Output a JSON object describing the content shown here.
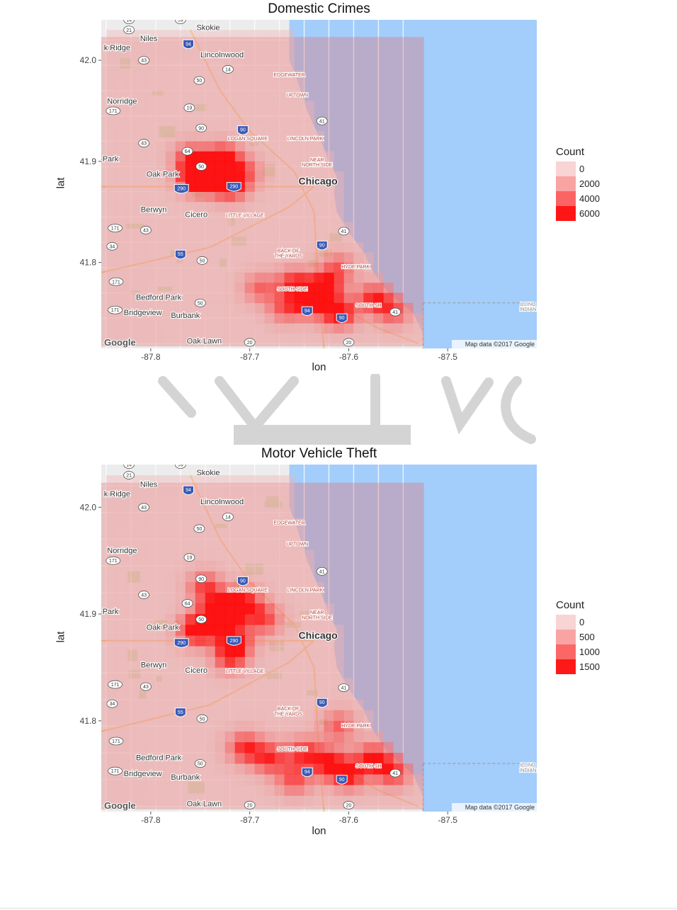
{
  "chart_data": [
    {
      "type": "heatmap",
      "title": "Domestic Crimes",
      "xlabel": "lon",
      "ylabel": "lat",
      "xlim": [
        -87.85,
        -87.41
      ],
      "ylim": [
        41.715,
        42.04
      ],
      "x_ticks": [
        -87.8,
        -87.7,
        -87.6,
        -87.5
      ],
      "x_tick_labels": [
        "-87.8",
        "-87.7",
        "-87.6",
        "-87.5"
      ],
      "y_ticks": [
        41.8,
        41.9,
        42.0
      ],
      "y_tick_labels": [
        "41.8",
        "41.9",
        "42.0"
      ],
      "legend": {
        "title": "Count",
        "placement": "right",
        "entries": [
          {
            "label": "0",
            "value": 0
          },
          {
            "label": "2000",
            "value": 2000
          },
          {
            "label": "4000",
            "value": 4000
          },
          {
            "label": "6000",
            "value": 6000
          }
        ],
        "max": 6500
      },
      "grid_cell": {
        "lon": 0.01,
        "lat": 0.01
      },
      "hotspots": [
        {
          "lon": -87.755,
          "lat": 41.885,
          "value": 6500
        },
        {
          "lon": -87.745,
          "lat": 41.885,
          "value": 6300
        },
        {
          "lon": -87.72,
          "lat": 41.875,
          "value": 5600
        },
        {
          "lon": -87.735,
          "lat": 41.895,
          "value": 4700
        },
        {
          "lon": -87.725,
          "lat": 41.905,
          "value": 4300
        },
        {
          "lon": -87.76,
          "lat": 41.905,
          "value": 4100
        },
        {
          "lon": -87.705,
          "lat": 41.89,
          "value": 3500
        },
        {
          "lon": -87.625,
          "lat": 41.775,
          "value": 6500
        },
        {
          "lon": -87.61,
          "lat": 41.75,
          "value": 6500
        },
        {
          "lon": -87.655,
          "lat": 41.78,
          "value": 5000
        },
        {
          "lon": -87.64,
          "lat": 41.76,
          "value": 5000
        },
        {
          "lon": -87.575,
          "lat": 41.765,
          "value": 5100
        },
        {
          "lon": -87.555,
          "lat": 41.752,
          "value": 4200
        },
        {
          "lon": -87.61,
          "lat": 41.795,
          "value": 3800
        },
        {
          "lon": -87.665,
          "lat": 41.755,
          "value": 3800
        },
        {
          "lon": -87.69,
          "lat": 41.775,
          "value": 3600
        }
      ]
    },
    {
      "type": "heatmap",
      "title": "Motor Vehicle Theft",
      "xlabel": "lon",
      "ylabel": "lat",
      "xlim": [
        -87.85,
        -87.41
      ],
      "ylim": [
        41.715,
        42.04
      ],
      "x_ticks": [
        -87.8,
        -87.7,
        -87.6,
        -87.5
      ],
      "x_tick_labels": [
        "-87.8",
        "-87.7",
        "-87.6",
        "-87.5"
      ],
      "y_ticks": [
        41.8,
        41.9,
        42.0
      ],
      "y_tick_labels": [
        "41.8",
        "41.9",
        "42.0"
      ],
      "legend": {
        "title": "Count",
        "placement": "right",
        "entries": [
          {
            "label": "0",
            "value": 0
          },
          {
            "label": "500",
            "value": 500
          },
          {
            "label": "1000",
            "value": 1000
          },
          {
            "label": "1500",
            "value": 1500
          }
        ],
        "max": 1650
      },
      "grid_cell": {
        "lon": 0.01,
        "lat": 0.01
      },
      "hotspots": [
        {
          "lon": -87.755,
          "lat": 41.885,
          "value": 1650
        },
        {
          "lon": -87.735,
          "lat": 41.895,
          "value": 1450
        },
        {
          "lon": -87.725,
          "lat": 41.905,
          "value": 1400
        },
        {
          "lon": -87.715,
          "lat": 41.875,
          "value": 1350
        },
        {
          "lon": -87.705,
          "lat": 41.91,
          "value": 1300
        },
        {
          "lon": -87.745,
          "lat": 41.925,
          "value": 1200
        },
        {
          "lon": -87.72,
          "lat": 41.86,
          "value": 1150
        },
        {
          "lon": -87.685,
          "lat": 41.895,
          "value": 1100
        },
        {
          "lon": -87.705,
          "lat": 41.775,
          "value": 1300
        },
        {
          "lon": -87.68,
          "lat": 41.765,
          "value": 1250
        },
        {
          "lon": -87.645,
          "lat": 41.77,
          "value": 1200
        },
        {
          "lon": -87.62,
          "lat": 41.76,
          "value": 1300
        },
        {
          "lon": -87.6,
          "lat": 41.75,
          "value": 1400
        },
        {
          "lon": -87.575,
          "lat": 41.765,
          "value": 1350
        },
        {
          "lon": -87.555,
          "lat": 41.752,
          "value": 1200
        },
        {
          "lon": -87.655,
          "lat": 41.745,
          "value": 1050
        },
        {
          "lon": -87.61,
          "lat": 41.795,
          "value": 1000
        }
      ]
    }
  ],
  "basemap": {
    "attribution": "Map data ©2017 Google",
    "logo": "Google",
    "water_color": "#a3cdfa",
    "land_color": "#ececec",
    "place_labels": [
      {
        "text": "Skokie",
        "lon": -87.742,
        "lat": 42.03,
        "kind": "city"
      },
      {
        "text": "Niles",
        "lon": -87.802,
        "lat": 42.019,
        "kind": "city"
      },
      {
        "text": "k Ridge",
        "lon": -87.834,
        "lat": 42.01,
        "kind": "city"
      },
      {
        "text": "Lincolnwood",
        "lon": -87.728,
        "lat": 42.003,
        "kind": "city"
      },
      {
        "text": "EDGEWATER",
        "lon": -87.66,
        "lat": 41.984,
        "kind": "district"
      },
      {
        "text": "UPTOWN",
        "lon": -87.652,
        "lat": 41.964,
        "kind": "district"
      },
      {
        "text": "Norridge",
        "lon": -87.829,
        "lat": 41.957,
        "kind": "city"
      },
      {
        "text": "LOGAN SQUARE",
        "lon": -87.702,
        "lat": 41.921,
        "kind": "district"
      },
      {
        "text": "LINCOLN PARK",
        "lon": -87.644,
        "lat": 41.921,
        "kind": "district"
      },
      {
        "text": "NEAR",
        "lon": -87.632,
        "lat": 41.9,
        "kind": "district"
      },
      {
        "text": "NORTH SIDE",
        "lon": -87.632,
        "lat": 41.895,
        "kind": "district"
      },
      {
        "text": "-Park",
        "lon": -87.842,
        "lat": 41.9,
        "kind": "city"
      },
      {
        "text": "Oak Park",
        "lon": -87.788,
        "lat": 41.885,
        "kind": "city"
      },
      {
        "text": "Chicago",
        "lon": -87.631,
        "lat": 41.877,
        "kind": "major"
      },
      {
        "text": "Berwyn",
        "lon": -87.797,
        "lat": 41.85,
        "kind": "city"
      },
      {
        "text": "Cicero",
        "lon": -87.754,
        "lat": 41.845,
        "kind": "city"
      },
      {
        "text": "LITTLE VILLAGE",
        "lon": -87.705,
        "lat": 41.845,
        "kind": "district"
      },
      {
        "text": "BACK OF",
        "lon": -87.661,
        "lat": 41.81,
        "kind": "district"
      },
      {
        "text": "THE YARDS",
        "lon": -87.661,
        "lat": 41.805,
        "kind": "district"
      },
      {
        "text": "HYDE PARK",
        "lon": -87.593,
        "lat": 41.794,
        "kind": "district"
      },
      {
        "text": "SOUTH SIDE",
        "lon": -87.657,
        "lat": 41.772,
        "kind": "district"
      },
      {
        "text": "SOUTH SH",
        "lon": -87.58,
        "lat": 41.756,
        "kind": "district"
      },
      {
        "text": "Bedford Park",
        "lon": -87.792,
        "lat": 41.763,
        "kind": "city"
      },
      {
        "text": "Bridgeview",
        "lon": -87.808,
        "lat": 41.748,
        "kind": "city"
      },
      {
        "text": "Burbank",
        "lon": -87.765,
        "lat": 41.745,
        "kind": "city"
      },
      {
        "text": "Oak Lawn",
        "lon": -87.746,
        "lat": 41.72,
        "kind": "city"
      },
      {
        "text": "ILLINO",
        "lon": -87.419,
        "lat": 41.757,
        "kind": "border"
      },
      {
        "text": "INDIAN",
        "lon": -87.419,
        "lat": 41.752,
        "kind": "border"
      }
    ],
    "road_shields": [
      {
        "text": "14",
        "lon": -87.822,
        "lat": 42.04,
        "type": "state"
      },
      {
        "text": "59",
        "lon": -87.77,
        "lat": 42.04,
        "type": "state"
      },
      {
        "text": "21",
        "lon": -87.822,
        "lat": 42.03,
        "type": "state"
      },
      {
        "text": "94",
        "lon": -87.762,
        "lat": 42.016,
        "type": "interstate"
      },
      {
        "text": "43",
        "lon": -87.807,
        "lat": 42.0,
        "type": "state"
      },
      {
        "text": "14",
        "lon": -87.722,
        "lat": 41.991,
        "type": "state"
      },
      {
        "text": "50",
        "lon": -87.751,
        "lat": 41.98,
        "type": "state"
      },
      {
        "text": "171",
        "lon": -87.838,
        "lat": 41.95,
        "type": "state"
      },
      {
        "text": "19",
        "lon": -87.761,
        "lat": 41.953,
        "type": "state"
      },
      {
        "text": "41",
        "lon": -87.627,
        "lat": 41.94,
        "type": "state"
      },
      {
        "text": "90",
        "lon": -87.749,
        "lat": 41.933,
        "type": "state"
      },
      {
        "text": "90",
        "lon": -87.707,
        "lat": 41.931,
        "type": "interstate"
      },
      {
        "text": "43",
        "lon": -87.807,
        "lat": 41.918,
        "type": "state"
      },
      {
        "text": "64",
        "lon": -87.763,
        "lat": 41.91,
        "type": "state"
      },
      {
        "text": "50",
        "lon": -87.749,
        "lat": 41.895,
        "type": "state"
      },
      {
        "text": "290",
        "lon": -87.769,
        "lat": 41.873,
        "type": "interstate"
      },
      {
        "text": "290",
        "lon": -87.716,
        "lat": 41.875,
        "type": "interstate"
      },
      {
        "text": "171",
        "lon": -87.836,
        "lat": 41.834,
        "type": "state"
      },
      {
        "text": "43",
        "lon": -87.805,
        "lat": 41.832,
        "type": "state"
      },
      {
        "text": "41",
        "lon": -87.605,
        "lat": 41.831,
        "type": "state"
      },
      {
        "text": "34",
        "lon": -87.839,
        "lat": 41.816,
        "type": "state"
      },
      {
        "text": "90",
        "lon": -87.627,
        "lat": 41.817,
        "type": "interstate"
      },
      {
        "text": "55",
        "lon": -87.77,
        "lat": 41.808,
        "type": "interstate"
      },
      {
        "text": "50",
        "lon": -87.748,
        "lat": 41.802,
        "type": "state"
      },
      {
        "text": "171",
        "lon": -87.835,
        "lat": 41.781,
        "type": "state"
      },
      {
        "text": "50",
        "lon": -87.75,
        "lat": 41.76,
        "type": "state"
      },
      {
        "text": "171",
        "lon": -87.836,
        "lat": 41.753,
        "type": "state"
      },
      {
        "text": "94",
        "lon": -87.642,
        "lat": 41.752,
        "type": "interstate"
      },
      {
        "text": "41",
        "lon": -87.553,
        "lat": 41.751,
        "type": "state"
      },
      {
        "text": "90",
        "lon": -87.607,
        "lat": 41.745,
        "type": "interstate"
      },
      {
        "text": "20",
        "lon": -87.7,
        "lat": 41.721,
        "type": "state"
      },
      {
        "text": "20",
        "lon": -87.6,
        "lat": 41.721,
        "type": "state"
      }
    ]
  }
}
